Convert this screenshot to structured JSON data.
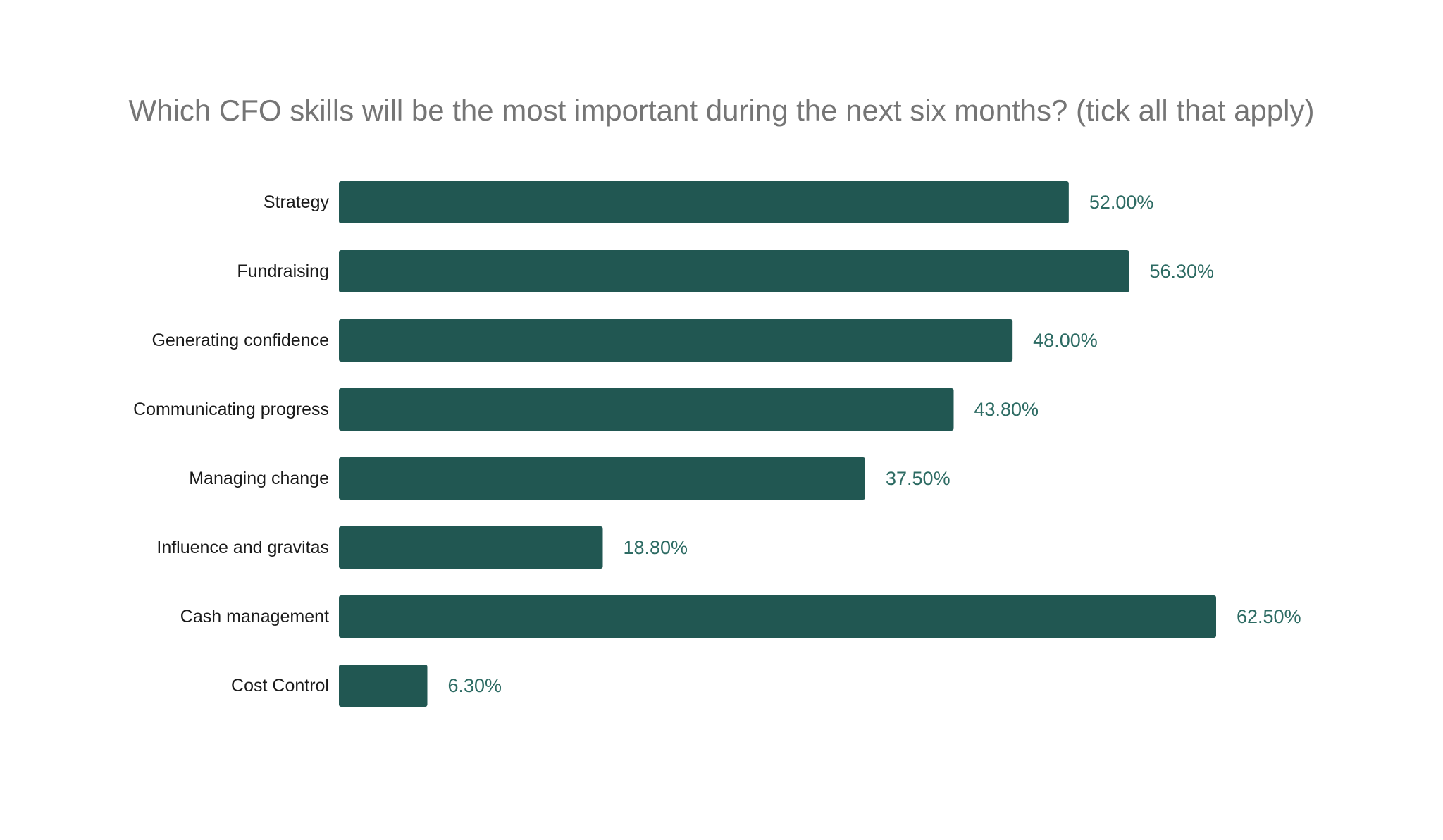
{
  "chart_data": {
    "type": "bar",
    "orientation": "horizontal",
    "title": "Which CFO skills will be the most important during the next six months? (tick all that apply)",
    "xlabel": "",
    "ylabel": "",
    "categories": [
      "Strategy",
      "Fundraising",
      "Generating confidence",
      "Communicating progress",
      "Managing change",
      "Influence and gravitas",
      "Cash management",
      "Cost Control"
    ],
    "values": [
      52.0,
      56.3,
      48.0,
      43.8,
      37.5,
      18.8,
      62.5,
      6.3
    ],
    "value_labels": [
      "52.00%",
      "56.30%",
      "48.00%",
      "43.80%",
      "37.50%",
      "18.80%",
      "62.50%",
      "6.30%"
    ],
    "xlim": [
      0,
      62.5
    ],
    "grid": false,
    "legend": "none",
    "colors": {
      "bar": "#215752",
      "value_label": "#2d6b63",
      "title": "#757575",
      "category_label": "#1a1a1a"
    }
  }
}
